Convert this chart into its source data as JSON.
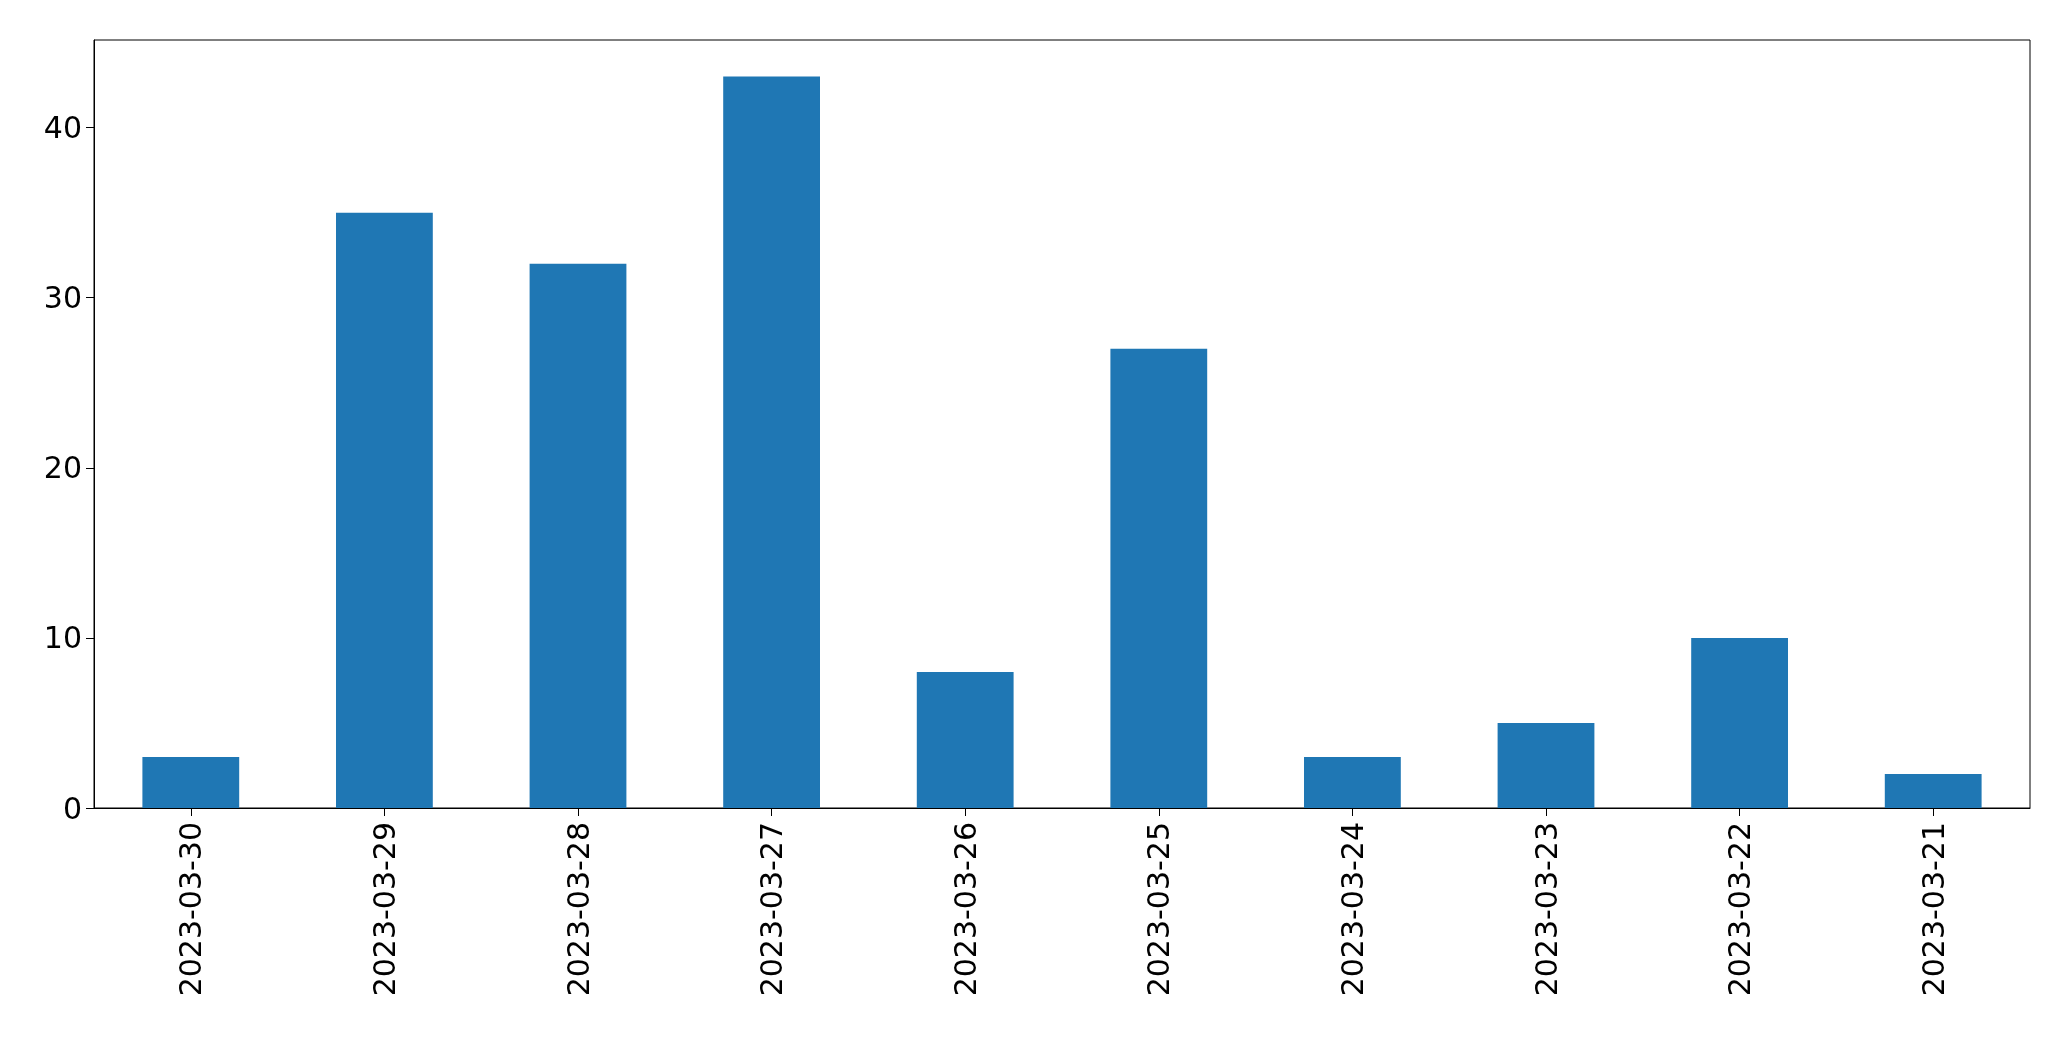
{
  "chart_data": {
    "type": "bar",
    "categories": [
      "2023-03-30",
      "2023-03-29",
      "2023-03-28",
      "2023-03-27",
      "2023-03-26",
      "2023-03-25",
      "2023-03-24",
      "2023-03-23",
      "2023-03-22",
      "2023-03-21"
    ],
    "values": [
      3,
      35,
      32,
      43,
      8,
      27,
      3,
      5,
      10,
      2
    ],
    "color": "#1f77b4",
    "ylim": [
      0,
      45.15
    ],
    "yticks": [
      0,
      10,
      20,
      30,
      40
    ],
    "grid": false
  }
}
